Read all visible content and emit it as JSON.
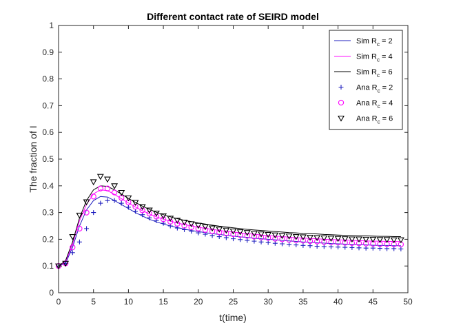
{
  "chart_data": {
    "type": "line",
    "title": "Different contact rate of SEIRD model",
    "xlabel": "t(time)",
    "ylabel": "The fraction of I",
    "xlim": [
      0,
      50
    ],
    "ylim": [
      0,
      1
    ],
    "x_ticks": [
      0,
      5,
      10,
      15,
      20,
      25,
      30,
      35,
      40,
      45,
      50
    ],
    "y_ticks": [
      0,
      0.1,
      0.2,
      0.3,
      0.4,
      0.5,
      0.6,
      0.7,
      0.8,
      0.9,
      1
    ],
    "x_tick_labels": [
      "0",
      "5",
      "10",
      "15",
      "20",
      "25",
      "30",
      "35",
      "40",
      "45",
      "50"
    ],
    "y_tick_labels": [
      "0",
      "0.1",
      "0.2",
      "0.3",
      "0.4",
      "0.5",
      "0.6",
      "0.7",
      "0.8",
      "0.9",
      "1"
    ],
    "grid": false,
    "legend_position": "top-right",
    "x": [
      0,
      1,
      2,
      3,
      4,
      5,
      6,
      7,
      8,
      9,
      10,
      11,
      12,
      13,
      14,
      15,
      16,
      17,
      18,
      19,
      20,
      21,
      22,
      23,
      24,
      25,
      26,
      27,
      28,
      29,
      30,
      31,
      32,
      33,
      34,
      35,
      36,
      37,
      38,
      39,
      40,
      41,
      42,
      43,
      44,
      45,
      46,
      47,
      48,
      49
    ],
    "series": [
      {
        "name": "Sim R_c = 2",
        "label_main": "Sim R",
        "label_sub": "c",
        "label_tail": " = 2",
        "kind": "line",
        "color": "#1f1fbf",
        "values": [
          0.1,
          0.11,
          0.17,
          0.25,
          0.31,
          0.345,
          0.36,
          0.358,
          0.345,
          0.33,
          0.315,
          0.3,
          0.287,
          0.275,
          0.265,
          0.257,
          0.25,
          0.244,
          0.238,
          0.233,
          0.229,
          0.225,
          0.221,
          0.218,
          0.215,
          0.212,
          0.209,
          0.207,
          0.204,
          0.202,
          0.2,
          0.198,
          0.196,
          0.194,
          0.192,
          0.19,
          0.189,
          0.187,
          0.186,
          0.184,
          0.183,
          0.182,
          0.181,
          0.18,
          0.179,
          0.178,
          0.177,
          0.177,
          0.176,
          0.176
        ]
      },
      {
        "name": "Sim R_c = 4",
        "label_main": "Sim R",
        "label_sub": "c",
        "label_tail": " = 4",
        "kind": "line",
        "color": "#ff00ff",
        "values": [
          0.1,
          0.115,
          0.18,
          0.27,
          0.33,
          0.37,
          0.385,
          0.382,
          0.368,
          0.352,
          0.336,
          0.321,
          0.307,
          0.295,
          0.284,
          0.275,
          0.268,
          0.261,
          0.255,
          0.25,
          0.245,
          0.241,
          0.237,
          0.233,
          0.23,
          0.227,
          0.224,
          0.221,
          0.219,
          0.216,
          0.214,
          0.212,
          0.21,
          0.208,
          0.206,
          0.205,
          0.203,
          0.202,
          0.2,
          0.199,
          0.198,
          0.197,
          0.196,
          0.195,
          0.194,
          0.193,
          0.193,
          0.192,
          0.192,
          0.191
        ]
      },
      {
        "name": "Sim R_c = 6",
        "label_main": "Sim R",
        "label_sub": "c",
        "label_tail": " = 6",
        "kind": "line",
        "color": "#000000",
        "values": [
          0.1,
          0.12,
          0.19,
          0.28,
          0.345,
          0.385,
          0.4,
          0.398,
          0.385,
          0.369,
          0.353,
          0.338,
          0.324,
          0.312,
          0.301,
          0.292,
          0.284,
          0.277,
          0.271,
          0.266,
          0.261,
          0.257,
          0.253,
          0.249,
          0.246,
          0.243,
          0.24,
          0.237,
          0.235,
          0.233,
          0.231,
          0.229,
          0.227,
          0.225,
          0.224,
          0.222,
          0.221,
          0.22,
          0.218,
          0.217,
          0.216,
          0.215,
          0.214,
          0.213,
          0.213,
          0.212,
          0.211,
          0.211,
          0.21,
          0.21
        ]
      },
      {
        "name": "Ana R_c = 2",
        "label_main": "Ana R",
        "label_sub": "c",
        "label_tail": " = 2",
        "kind": "plus",
        "color": "#1f1fbf",
        "values": [
          0.1,
          0.11,
          0.15,
          0.19,
          0.24,
          0.3,
          0.335,
          0.345,
          0.345,
          0.335,
          0.32,
          0.305,
          0.292,
          0.28,
          0.27,
          0.26,
          0.25,
          0.242,
          0.236,
          0.23,
          0.224,
          0.219,
          0.214,
          0.21,
          0.206,
          0.202,
          0.199,
          0.196,
          0.193,
          0.19,
          0.188,
          0.185,
          0.183,
          0.181,
          0.179,
          0.177,
          0.176,
          0.174,
          0.173,
          0.172,
          0.171,
          0.17,
          0.169,
          0.168,
          0.167,
          0.167,
          0.166,
          0.165,
          0.165,
          0.164
        ]
      },
      {
        "name": "Ana R_c = 4",
        "label_main": "Ana R",
        "label_sub": "c",
        "label_tail": " = 4",
        "kind": "circle",
        "color": "#ff00ff",
        "values": [
          0.1,
          0.11,
          0.17,
          0.24,
          0.3,
          0.36,
          0.39,
          0.39,
          0.375,
          0.355,
          0.338,
          0.322,
          0.308,
          0.296,
          0.285,
          0.275,
          0.266,
          0.258,
          0.251,
          0.245,
          0.24,
          0.235,
          0.23,
          0.226,
          0.222,
          0.219,
          0.216,
          0.213,
          0.21,
          0.207,
          0.205,
          0.202,
          0.2,
          0.198,
          0.196,
          0.195,
          0.193,
          0.192,
          0.19,
          0.189,
          0.188,
          0.187,
          0.186,
          0.185,
          0.184,
          0.183,
          0.182,
          0.182,
          0.181,
          0.181
        ]
      },
      {
        "name": "Ana R_c = 6",
        "label_main": "Ana R",
        "label_sub": "c",
        "label_tail": " = 6",
        "kind": "triangle",
        "color": "#000000",
        "values": [
          0.1,
          0.11,
          0.21,
          0.29,
          0.34,
          0.415,
          0.435,
          0.425,
          0.4,
          0.375,
          0.355,
          0.338,
          0.322,
          0.309,
          0.298,
          0.288,
          0.279,
          0.271,
          0.264,
          0.258,
          0.252,
          0.247,
          0.242,
          0.238,
          0.234,
          0.231,
          0.228,
          0.225,
          0.222,
          0.22,
          0.218,
          0.216,
          0.214,
          0.212,
          0.21,
          0.209,
          0.207,
          0.206,
          0.205,
          0.204,
          0.203,
          0.202,
          0.201,
          0.201,
          0.2,
          0.2,
          0.199,
          0.199,
          0.198,
          0.198
        ]
      }
    ]
  }
}
